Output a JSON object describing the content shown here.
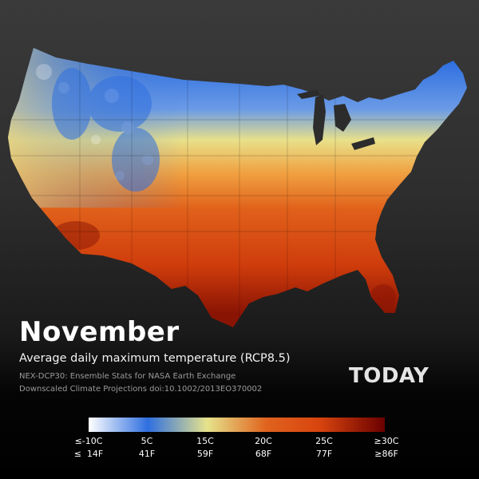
{
  "title": "November",
  "subtitle": "Average daily maximum temperature (RCP8.5)",
  "credits": [
    "NEX-DCP30: Ensemble Stats for NASA Earth Exchange",
    "Downscaled Climate Projections doi:10.1002/2013EO370002"
  ],
  "period_label": "TODAY",
  "legend": {
    "colors": [
      "#ffffff",
      "#2f6fe0",
      "#e6e38c",
      "#e0631e",
      "#d8440e",
      "#6a0000"
    ],
    "celsius_labels": [
      "≤-10C",
      "5C",
      "15C",
      "20C",
      "25C",
      "≥30C"
    ],
    "fahrenheit_labels": [
      "≤  14F",
      "41F",
      "59F",
      "68F",
      "77F",
      "≥86F"
    ]
  }
}
